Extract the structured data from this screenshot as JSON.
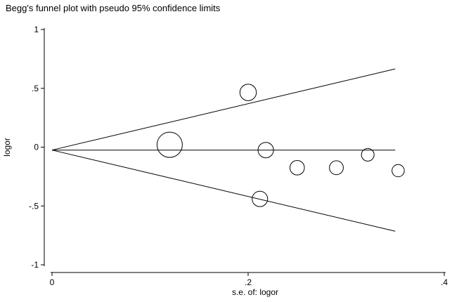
{
  "chart_data": {
    "type": "scatter",
    "title": "Begg's funnel plot with pseudo 95% confidence limits",
    "xlabel": "s.e. of: logor",
    "ylabel": "logor",
    "xlim": [
      0,
      0.4
    ],
    "ylim": [
      -1,
      1
    ],
    "xticks": [
      {
        "value": 0,
        "label": "0"
      },
      {
        "value": 0.2,
        "label": ".2"
      },
      {
        "value": 0.4,
        "label": ".4"
      }
    ],
    "yticks": [
      {
        "value": 1,
        "label": "1"
      },
      {
        "value": 0.5,
        "label": ".5"
      },
      {
        "value": 0,
        "label": "0"
      },
      {
        "value": -0.5,
        "label": "-.5"
      },
      {
        "value": -1,
        "label": "-1"
      }
    ],
    "grid": false,
    "pooled_estimate": -0.025,
    "confidence_limits": {
      "apex": [
        0,
        -0.025
      ],
      "upper": [
        0.35,
        0.665
      ],
      "lower": [
        0.35,
        -0.715
      ],
      "center_end": [
        0.35,
        -0.025
      ]
    },
    "points": [
      {
        "x": 0.12,
        "y": 0.02,
        "weight": 1.0
      },
      {
        "x": 0.2,
        "y": 0.465,
        "weight": 0.55
      },
      {
        "x": 0.218,
        "y": -0.025,
        "weight": 0.5
      },
      {
        "x": 0.212,
        "y": -0.44,
        "weight": 0.5
      },
      {
        "x": 0.25,
        "y": -0.175,
        "weight": 0.45
      },
      {
        "x": 0.29,
        "y": -0.175,
        "weight": 0.42
      },
      {
        "x": 0.322,
        "y": -0.065,
        "weight": 0.36
      },
      {
        "x": 0.353,
        "y": -0.2,
        "weight": 0.34
      }
    ]
  }
}
